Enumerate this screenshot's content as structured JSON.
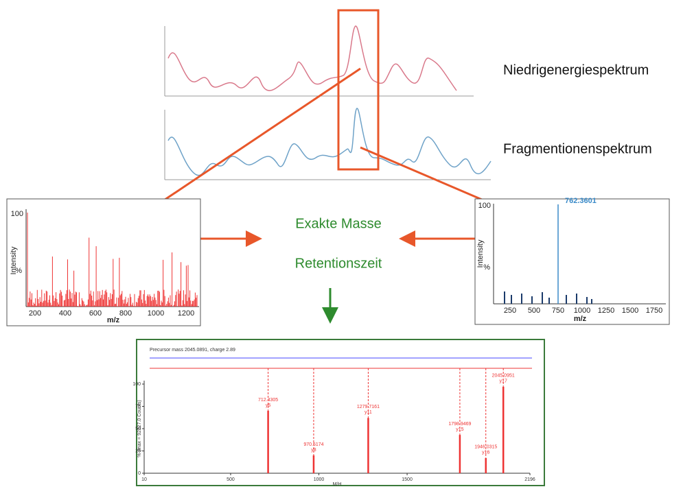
{
  "labels": {
    "low_energy": "Niedrigenergiespektrum",
    "fragment": "Fragmentionenspektrum",
    "exact_mass": "Exakte Masse",
    "retention_time": "Retentionszeit"
  },
  "left_spectrum": {
    "y_top": "100",
    "y_label": "Intensity",
    "y_unit": "%",
    "x_label": "m/z",
    "x_ticks": [
      "200",
      "400",
      "600",
      "800",
      "1000",
      "1200"
    ]
  },
  "right_spectrum": {
    "y_top": "100",
    "peak_label": "762.3601",
    "y_label": "Intensity",
    "y_unit": "%",
    "x_label": "m/z",
    "x_ticks": [
      "250",
      "500",
      "750",
      "1000",
      "1250",
      "1500",
      "1750"
    ]
  },
  "fragment_chart": {
    "title": "Precursor mass 2045.0891, charge 2.89",
    "y_label": "% (max = 92327.0 Counts)",
    "x_label": "M/H",
    "xlim": [
      10,
      2196
    ],
    "ylim": [
      0,
      100
    ],
    "xticks": [
      10,
      500,
      1000,
      1500,
      2196
    ],
    "yticks": [
      0,
      25,
      50,
      75,
      100
    ],
    "peaks": [
      {
        "mz": 712.4305,
        "intensity": 70,
        "label": "712.4305",
        "ion": "y6"
      },
      {
        "mz": 970.5174,
        "intensity": 20,
        "label": "970.5174",
        "ion": "y8"
      },
      {
        "mz": 1279.7161,
        "intensity": 62,
        "label": "1279.7161",
        "ion": "y11"
      },
      {
        "mz": 1798.9469,
        "intensity": 43,
        "label": "1798.9469",
        "ion": "y15"
      },
      {
        "mz": 1946.0315,
        "intensity": 17,
        "label": "1946.0315",
        "ion": "y16"
      },
      {
        "mz": 2045.0951,
        "intensity": 97,
        "label": "2045.0951",
        "ion": "y17"
      }
    ]
  }
}
